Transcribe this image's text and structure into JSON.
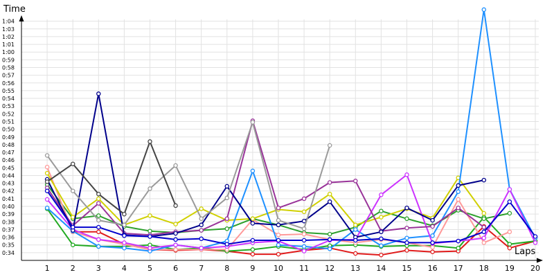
{
  "chart_data": {
    "type": "line",
    "title": "",
    "xlabel": "Laps",
    "ylabel": "Time",
    "x": [
      1,
      2,
      3,
      4,
      5,
      6,
      7,
      8,
      9,
      10,
      11,
      12,
      13,
      14,
      15,
      16,
      17,
      18,
      19,
      20
    ],
    "xlim": [
      0,
      20
    ],
    "ylim": [
      "0:33",
      "1:05"
    ],
    "y_ticks": [
      "0:34",
      "0:35",
      "0:36",
      "0:37",
      "0:38",
      "0:39",
      "0:40",
      "0:41",
      "0:42",
      "0:43",
      "0:44",
      "0:45",
      "0:46",
      "0:47",
      "0:48",
      "0:49",
      "0:50",
      "0:51",
      "0:52",
      "0:53",
      "0:54",
      "0:55",
      "0:56",
      "0:57",
      "0:58",
      "0:59",
      "1:00",
      "1:01",
      "1:02",
      "1:03",
      "1:04"
    ],
    "grid": true,
    "legend": "none",
    "series": [
      {
        "color": "#e01b1b",
        "values": [
          null,
          "0:36.7",
          "0:36.7",
          "0:35.1",
          "0:34.4",
          "0:34.3",
          "0:34.4",
          "0:34.2",
          "0:33.8",
          "0:33.8",
          "0:34.3",
          "0:34.6",
          "0:33.9",
          "0:33.7",
          "0:34.3",
          "0:34.1",
          "0:34.2",
          "0:37.4",
          "0:34.6",
          "0:35.5"
        ]
      },
      {
        "color": "#22aa22",
        "values": [
          "0:39.7",
          "0:35.0",
          "0:34.8",
          "0:34.8",
          "0:35.0",
          "0:34.4",
          "0:34.6",
          "0:34.2",
          "0:34.4",
          "0:34.8",
          "0:34.4",
          "0:34.9",
          "0:35.0",
          "0:34.8",
          "0:34.9",
          "0:34.9",
          "0:34.6",
          "0:38.6",
          "0:35.1",
          "0:35.5"
        ]
      },
      {
        "color": "#2ca02c",
        "values": [
          "0:42.8",
          "0:38.4",
          "0:38.8",
          "0:37.4",
          "0:36.8",
          "0:36.6",
          "0:36.9",
          "0:37.1",
          "0:38.4",
          "0:37.6",
          "0:36.6",
          "0:36.4",
          "0:37.3",
          "0:39.4",
          "0:38.4",
          "0:37.5",
          "0:39.5",
          "0:38.4",
          "0:39.1",
          null
        ]
      },
      {
        "color": "#ff9999",
        "values": [
          "0:45.1",
          "0:36.7",
          "0:35.7",
          "0:35.1",
          "0:34.4",
          "0:34.4",
          "0:34.4",
          "0:34.4",
          "0:38.3",
          "0:36.3",
          "0:36.4",
          "0:35.7",
          "0:35.3",
          "0:35.7",
          "0:35.3",
          "0:34.7",
          "0:40.9",
          "0:35.3",
          "0:36.7",
          null
        ]
      },
      {
        "color": "#d0d000",
        "values": [
          "0:44.3",
          "0:38.6",
          "0:41.0",
          "0:37.6",
          "0:38.8",
          "0:37.7",
          "0:39.7",
          "0:38.2",
          "0:38.4",
          "0:39.6",
          "0:39.3",
          "0:41.6",
          "0:37.6",
          "0:38.6",
          "0:39.7",
          "0:38.5",
          "0:43.7",
          "0:39.1",
          null,
          null
        ]
      },
      {
        "color": "#1e90ff",
        "values": [
          "0:39.8",
          "0:36.8",
          "0:34.8",
          "0:34.6",
          "0:34.2",
          "0:35.0",
          "0:34.6",
          "0:35.5",
          "0:44.6",
          "0:35.0",
          "0:34.8",
          "0:34.5",
          "0:37.0",
          "0:34.9",
          "0:35.9",
          "0:36.2",
          "0:41.9",
          "1:05.5",
          "0:42.2",
          "0:35.9"
        ]
      },
      {
        "color": "#cc33ff",
        "values": [
          "0:40.9",
          "0:37.0",
          "0:35.7",
          "0:35.3",
          "0:34.6",
          "0:35.0",
          "0:34.6",
          "0:34.8",
          "0:35.3",
          "0:35.5",
          "0:34.2",
          "0:35.6",
          "0:35.7",
          "0:41.5",
          "0:44.1",
          "0:35.2",
          "0:35.5",
          "0:35.9",
          "0:42.2",
          "0:35.3"
        ]
      },
      {
        "color": "#993399",
        "values": [
          "0:42.4",
          "0:37.5",
          "0:40.4",
          "0:36.5",
          "0:36.3",
          "0:36.7",
          "0:36.9",
          "0:38.4",
          "0:51.1",
          "0:39.8",
          "0:41.0",
          "0:43.1",
          "0:43.3",
          "0:36.8",
          "0:37.2",
          "0:37.4",
          "0:39.8",
          "0:37.3",
          null,
          null
        ]
      },
      {
        "color": "#00008b",
        "values": [
          "0:43.5",
          "0:36.9",
          "0:54.6",
          "0:36.3",
          "0:36.1",
          "0:36.5",
          "0:37.6",
          "0:42.6",
          "0:37.8",
          "0:37.6",
          "0:38.1",
          "0:40.6",
          "0:36.0",
          "0:36.7",
          "0:39.8",
          "0:38.2",
          "0:42.7",
          "0:43.4",
          null,
          null
        ]
      },
      {
        "color": "#0000cd",
        "values": [
          "0:42.0",
          "0:37.3",
          "0:37.3",
          "0:36.2",
          "0:36.1",
          "0:35.7",
          "0:35.8",
          "0:35.1",
          "0:35.6",
          "0:35.6",
          "0:35.6",
          "0:35.7",
          "0:35.6",
          "0:35.8",
          "0:35.3",
          "0:35.3",
          "0:35.5",
          "0:36.7",
          "0:40.6",
          "0:36.1"
        ]
      },
      {
        "color": "#9a9a9a",
        "values": [
          "0:46.6",
          "0:42.0",
          "0:38.2",
          "0:37.6",
          "0:42.3",
          "0:45.3",
          "0:38.4",
          "0:41.1",
          "0:50.9",
          "0:38.2",
          "0:37.1",
          "0:47.9",
          null,
          null,
          null,
          null,
          null,
          null,
          null,
          null
        ]
      },
      {
        "color": "#444444",
        "values": [
          "0:43.2",
          "0:45.5",
          "0:41.6",
          "0:39.0",
          "0:48.4",
          "0:40.1",
          null,
          null,
          null,
          null,
          null,
          null,
          null,
          null,
          null,
          null,
          null,
          null,
          null,
          null
        ]
      }
    ]
  }
}
